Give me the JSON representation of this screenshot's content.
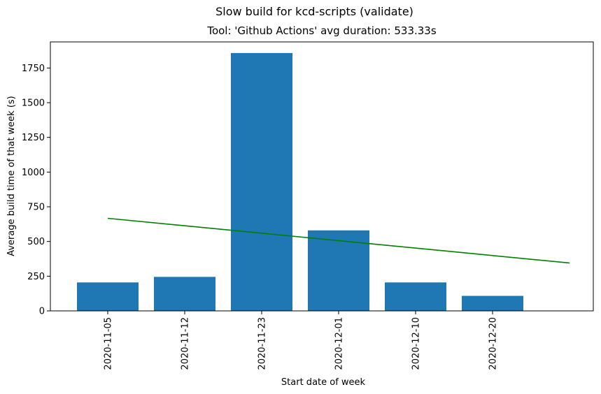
{
  "chart_data": {
    "type": "bar",
    "suptitle": "Slow build for kcd-scripts (validate)",
    "title": "Tool: 'Github Actions' avg duration: 533.33s",
    "xlabel": "Start date of week",
    "ylabel": "Average build time of that week (s)",
    "categories": [
      "2020-11-05",
      "2020-11-12",
      "2020-11-23",
      "2020-12-01",
      "2020-12-10",
      "2020-12-20"
    ],
    "values": [
      205,
      245,
      1858,
      580,
      205,
      108
    ],
    "ylim": [
      0,
      1858
    ],
    "yticks": [
      0,
      250,
      500,
      750,
      1000,
      1250,
      1500,
      1750
    ],
    "bar_color": "#1f77b4",
    "trend_line": {
      "color": "#008000",
      "start": 667,
      "end": 345
    },
    "grid": false
  }
}
